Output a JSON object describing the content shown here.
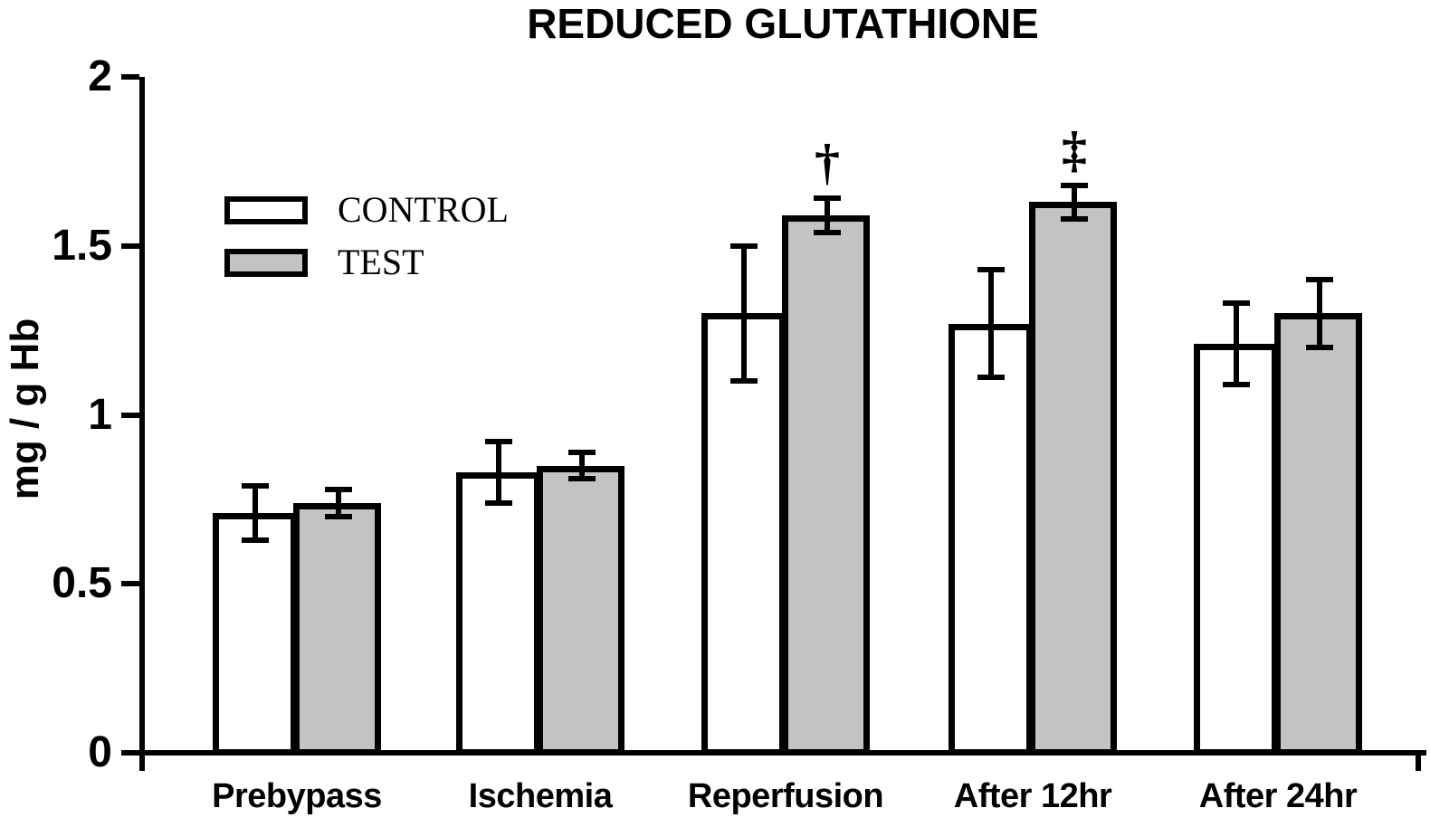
{
  "figure": {
    "background": "#ffffff"
  },
  "chart_data": {
    "type": "bar",
    "title": "REDUCED GLUTATHIONE",
    "ylabel": "mg / g Hb",
    "xlabel": "",
    "categories": [
      "Prebypass",
      "Ischemia",
      "Reperfusion",
      "After 12hr",
      "After 24hr"
    ],
    "series": [
      {
        "name": "CONTROL",
        "fill": "#ffffff",
        "values": [
          0.71,
          0.83,
          1.3,
          1.27,
          1.21
        ],
        "errors": [
          0.08,
          0.09,
          0.2,
          0.16,
          0.12
        ]
      },
      {
        "name": "TEST",
        "fill": "#c3c3c3",
        "values": [
          0.74,
          0.85,
          1.59,
          1.63,
          1.3
        ],
        "errors": [
          0.04,
          0.04,
          0.05,
          0.05,
          0.1
        ]
      }
    ],
    "y_axis": {
      "min": 0,
      "max": 2,
      "ticks": [
        0,
        0.5,
        1,
        1.5,
        2
      ],
      "tick_labels": [
        "0",
        "0.5",
        "1",
        "1.5",
        "2"
      ]
    },
    "annotations": [
      {
        "symbol": "†",
        "category": "Reperfusion",
        "series": "TEST"
      },
      {
        "symbol": "‡",
        "category": "After 12hr",
        "series": "TEST"
      }
    ],
    "legend": {
      "position": "upper-left-inside",
      "entries": [
        "CONTROL",
        "TEST"
      ]
    },
    "grid": false,
    "colors": {
      "axis": "#000000",
      "bar_border": "#000000",
      "error_bar": "#000000",
      "text": "#000000"
    }
  }
}
